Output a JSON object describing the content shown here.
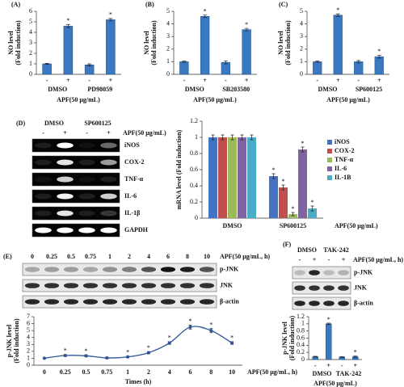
{
  "chart_data": [
    {
      "type": "bar",
      "panel": "(A)",
      "ylabel": [
        "NO level",
        "(Fold induction)"
      ],
      "categories": [
        "-",
        "+",
        "-",
        "+"
      ],
      "groups": [
        "DMSO",
        "PD98059"
      ],
      "xlabel": "APF(50 μg/mL)",
      "values": [
        1,
        4.6,
        0.9,
        5.2
      ],
      "errors": [
        0.05,
        0.15,
        0.1,
        0.12
      ],
      "markers": [
        null,
        "*",
        null,
        "*"
      ],
      "color": "#3a78c2",
      "ylim": [
        0,
        6
      ],
      "yticks": [
        0,
        1,
        2,
        3,
        4,
        5,
        6
      ]
    },
    {
      "type": "bar",
      "panel": "(B)",
      "ylabel": [
        "NO level",
        "(Fold induction)"
      ],
      "categories": [
        "-",
        "+",
        "-",
        "+"
      ],
      "groups": [
        "DMSO",
        "SB203580"
      ],
      "xlabel": "APF(50 μg/mL)",
      "values": [
        1,
        4.6,
        0.95,
        3.55
      ],
      "errors": [
        0.05,
        0.1,
        0.12,
        0.1
      ],
      "markers": [
        null,
        "*",
        null,
        "*"
      ],
      "color": "#3a78c2",
      "ylim": [
        0,
        5
      ],
      "yticks": [
        0,
        1,
        2,
        3,
        4,
        5
      ]
    },
    {
      "type": "bar",
      "panel": "(C)",
      "ylabel": [
        "NO level",
        "(Fold induction)"
      ],
      "categories": [
        "-",
        "+",
        "-",
        "+"
      ],
      "groups": [
        "DMSO",
        "SP600125"
      ],
      "xlabel": "APF(50 μg/mL)",
      "values": [
        1,
        4.7,
        1.0,
        1.4
      ],
      "errors": [
        0.05,
        0.1,
        0.1,
        0.12
      ],
      "markers": [
        null,
        "*",
        null,
        "*"
      ],
      "color": "#3a78c2",
      "ylim": [
        0,
        5
      ],
      "yticks": [
        0,
        1,
        2,
        3,
        4,
        5
      ]
    },
    {
      "type": "bar",
      "ylabel": [
        "mRNA level (Fold induction)"
      ],
      "categories": [
        "DMSO",
        "SP600125"
      ],
      "xlabel": "APF(50 μg/mL)",
      "series": [
        {
          "name": "iNOS",
          "color": "#4472c4",
          "values": [
            1,
            0.52
          ],
          "errors": [
            0.03,
            0.03
          ],
          "markers": [
            null,
            "*"
          ]
        },
        {
          "name": "COX-2",
          "color": "#c0504d",
          "values": [
            1,
            0.38
          ],
          "errors": [
            0.03,
            0.03
          ],
          "markers": [
            null,
            "*"
          ]
        },
        {
          "name": "TNF-α",
          "color": "#9bbb59",
          "values": [
            1,
            0.05
          ],
          "errors": [
            0.03,
            0.02
          ],
          "markers": [
            null,
            "*"
          ]
        },
        {
          "name": "IL-6",
          "color": "#8064a2",
          "values": [
            1,
            0.85
          ],
          "errors": [
            0.03,
            0.03
          ],
          "markers": [
            null,
            "*"
          ]
        },
        {
          "name": "IL-1B",
          "color": "#4bacc6",
          "values": [
            1,
            0.12
          ],
          "errors": [
            0.03,
            0.03
          ],
          "markers": [
            null,
            "*"
          ]
        }
      ],
      "ylim": [
        0,
        1.2
      ],
      "yticks": [
        0,
        0.2,
        0.4,
        0.6,
        0.8,
        1,
        1.2
      ]
    },
    {
      "type": "line",
      "ylabel": [
        "p-JNK level",
        "(Fold induction)"
      ],
      "categories": [
        "0",
        "0.25",
        "0.5",
        "0.75",
        "1",
        "2",
        "4",
        "6",
        "8",
        "10"
      ],
      "values": [
        1,
        1.4,
        1.35,
        1.05,
        1.2,
        1.8,
        3.2,
        5.5,
        5.0,
        3.2
      ],
      "errors": [
        0.05,
        0.15,
        0.15,
        0.1,
        0.1,
        0.15,
        0.2,
        0.3,
        0.3,
        0.2
      ],
      "markers": [
        null,
        "*",
        "*",
        null,
        "*",
        "*",
        "*",
        "*",
        "*",
        "*"
      ],
      "color": "#2f5597",
      "xlabel": "Times (h)",
      "x_annotation": "APF(50 μg/mL, h)",
      "ylim": [
        0,
        7
      ],
      "yticks": [
        0,
        1,
        2,
        3,
        4,
        5,
        6,
        7
      ]
    },
    {
      "type": "bar",
      "ylabel": [
        "p-JNK level",
        "(Fold induction)"
      ],
      "categories": [
        "-",
        "+",
        "-",
        "+"
      ],
      "groups": [
        "DMSO",
        "TAK-242"
      ],
      "xlabel": "APF(50 μg/mL)",
      "values": [
        0.08,
        1.0,
        0.07,
        0.08
      ],
      "errors": [
        0.01,
        0.02,
        0.01,
        0.02
      ],
      "markers": [
        null,
        "*",
        null,
        "*"
      ],
      "color": "#3a78c2",
      "ylim": [
        0,
        1.2
      ],
      "yticks": [
        0,
        0.2,
        0.4,
        0.6,
        0.8,
        1,
        1.2
      ]
    }
  ],
  "blots": [
    {
      "panel": "(D)",
      "groups": [
        "DMSO",
        "SP600125"
      ],
      "lanes": [
        "-",
        "+",
        "-",
        "+"
      ],
      "treatment": "APF(50 μg/mL)",
      "rows": [
        "iNOS",
        "COX-2",
        "TNF-α",
        "IL-6",
        "IL-1β",
        "GAPDH"
      ]
    },
    {
      "panel": "(E)",
      "lanes": [
        "0",
        "0.25",
        "0.5",
        "0.75",
        "1",
        "2",
        "4",
        "6",
        "8",
        "10"
      ],
      "treatment": "APF(50 μg/mL, h)",
      "rows": [
        "p-JNK",
        "JNK",
        "β-actin"
      ]
    },
    {
      "panel": "(F)",
      "groups": [
        "DMSO",
        "TAK-242"
      ],
      "lanes": [
        "-",
        "+",
        "-",
        "+"
      ],
      "treatment": "APF(50 μg/mL, h)",
      "rows": [
        "p-JNK",
        "JNK",
        "β-actin"
      ]
    }
  ]
}
